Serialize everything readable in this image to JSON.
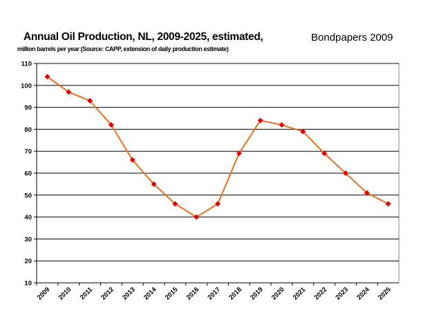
{
  "chart_data": {
    "type": "line",
    "title": "Annual Oil Production, NL, 2009-2025, estimated,",
    "subtitle": "million barrels per year (Source: CAPP, extension of daily production estimate)",
    "annotation": "Bondpapers 2009",
    "xlabel": "",
    "ylabel": "",
    "categories": [
      "2009",
      "2010",
      "2011",
      "2012",
      "2013",
      "2014",
      "2015",
      "2016",
      "2017",
      "2018",
      "2019",
      "2020",
      "2021",
      "2022",
      "2023",
      "2024",
      "2025"
    ],
    "series": [
      {
        "name": "Annual Oil Production",
        "values": [
          104,
          97,
          93,
          82,
          66,
          55,
          46,
          40,
          46,
          69,
          84,
          82,
          79,
          69,
          60,
          51,
          46
        ],
        "line_color": "#E8701A",
        "marker_color": "#E00000",
        "marker": "diamond"
      }
    ],
    "ylim": [
      10,
      110
    ],
    "yticks": [
      10,
      20,
      30,
      40,
      50,
      60,
      70,
      80,
      90,
      100,
      110
    ],
    "grid": true,
    "legend": "none"
  }
}
